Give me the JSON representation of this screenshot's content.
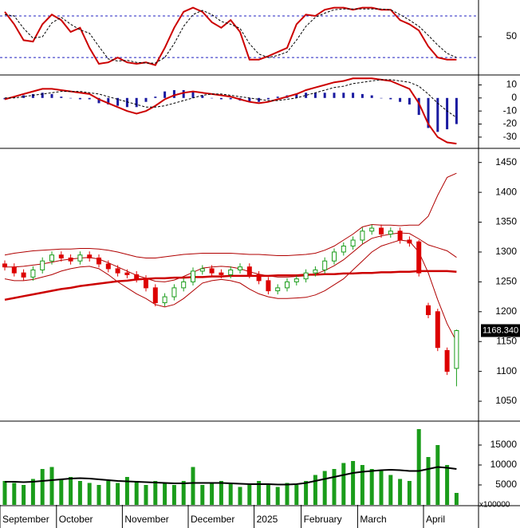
{
  "chart_data": [
    {
      "type": "line",
      "ylim": [
        -4,
        103
      ],
      "yticks": [
        50
      ],
      "levels": [
        20,
        80
      ],
      "series": [
        {
          "color": "#cc0000",
          "values": [
            86,
            68,
            45,
            43,
            68,
            82,
            74,
            57,
            63,
            34,
            11,
            13,
            20,
            13,
            11,
            13,
            9,
            34,
            63,
            86,
            92,
            86,
            71,
            63,
            74,
            57,
            17,
            17,
            22,
            28,
            34,
            68,
            82,
            80,
            89,
            92,
            92,
            89,
            92,
            92,
            89,
            89,
            74,
            68,
            59,
            36,
            20,
            17,
            17
          ]
        },
        {
          "color": "#000000",
          "dashed": true,
          "values": [
            82,
            80,
            62,
            48,
            50,
            70,
            78,
            68,
            60,
            55,
            36,
            18,
            15,
            16,
            13,
            12,
            12,
            20,
            40,
            65,
            82,
            88,
            82,
            72,
            68,
            62,
            40,
            25,
            20,
            23,
            28,
            45,
            65,
            78,
            84,
            89,
            90,
            90,
            90,
            90,
            90,
            89,
            82,
            74,
            65,
            52,
            38,
            26,
            20
          ]
        }
      ]
    },
    {
      "type": "macd",
      "ylim": [
        -38,
        17
      ],
      "yticks": [
        10,
        0,
        -10,
        -20,
        -30
      ],
      "macd": {
        "color": "#cc0000",
        "values": [
          -1,
          1,
          3,
          5,
          7,
          7,
          6,
          5,
          4,
          3,
          -1,
          -4,
          -7,
          -10,
          -12,
          -10,
          -6,
          -1,
          2,
          4,
          5,
          4,
          3,
          2,
          1,
          -1,
          -3,
          -4,
          -3,
          -1,
          1,
          3,
          6,
          8,
          10,
          12,
          13,
          15,
          15,
          15,
          14,
          13,
          10,
          7,
          -4,
          -20,
          -30,
          -34,
          -35
        ]
      },
      "signal": {
        "color": "#000000",
        "values": [
          0,
          0,
          1,
          2,
          3,
          4,
          5,
          5,
          5,
          4,
          3,
          1,
          -1,
          -3,
          -5,
          -7,
          -7,
          -6,
          -4,
          -2,
          0,
          2,
          3,
          3,
          2,
          1,
          0,
          -1,
          -2,
          -2,
          -1,
          0,
          2,
          4,
          6,
          8,
          9,
          11,
          12,
          13,
          14,
          14,
          13,
          12,
          9,
          3,
          -4,
          -10,
          -15
        ]
      },
      "histogram": {
        "color": "#1a1aa0",
        "values": [
          -1,
          1,
          2,
          3,
          4,
          3,
          1,
          0,
          -1,
          -1,
          -4,
          -5,
          -6,
          -7,
          -7,
          -3,
          1,
          5,
          6,
          6,
          5,
          2,
          0,
          -1,
          -1,
          -2,
          -3,
          -3,
          -1,
          1,
          2,
          3,
          4,
          4,
          4,
          4,
          4,
          4,
          3,
          2,
          0,
          -1,
          -3,
          -5,
          -13,
          -23,
          -26,
          -24,
          -20
        ]
      }
    },
    {
      "type": "candlestick",
      "ylim": [
        1018,
        1471
      ],
      "yticks": [
        1450,
        1400,
        1350,
        1300,
        1250,
        1200,
        1150,
        1100,
        1050
      ],
      "up_color": "#1a9c1a",
      "down_color": "#dd0000",
      "open": [
        1280,
        1275,
        1265,
        1258,
        1270,
        1285,
        1295,
        1290,
        1285,
        1295,
        1290,
        1280,
        1272,
        1265,
        1262,
        1255,
        1240,
        1215,
        1225,
        1240,
        1250,
        1268,
        1272,
        1265,
        1262,
        1270,
        1275,
        1262,
        1252,
        1235,
        1240,
        1250,
        1255,
        1265,
        1270,
        1285,
        1300,
        1310,
        1320,
        1335,
        1340,
        1330,
        1335,
        1320,
        1317,
        1210,
        1200,
        1135,
        1105
      ],
      "high": [
        1286,
        1281,
        1271,
        1276,
        1291,
        1301,
        1301,
        1296,
        1301,
        1301,
        1296,
        1286,
        1278,
        1271,
        1268,
        1261,
        1246,
        1231,
        1246,
        1256,
        1274,
        1278,
        1278,
        1271,
        1276,
        1281,
        1281,
        1268,
        1258,
        1246,
        1256,
        1261,
        1271,
        1276,
        1291,
        1306,
        1316,
        1326,
        1341,
        1346,
        1346,
        1341,
        1341,
        1326,
        1320,
        1215,
        1205,
        1140,
        1170
      ],
      "low": [
        1269,
        1259,
        1252,
        1252,
        1264,
        1279,
        1284,
        1279,
        1279,
        1284,
        1274,
        1266,
        1259,
        1256,
        1249,
        1234,
        1209,
        1209,
        1219,
        1234,
        1244,
        1262,
        1259,
        1256,
        1256,
        1264,
        1256,
        1246,
        1229,
        1229,
        1234,
        1244,
        1249,
        1259,
        1264,
        1279,
        1294,
        1304,
        1314,
        1329,
        1324,
        1324,
        1314,
        1309,
        1259,
        1189,
        1134,
        1094,
        1075
      ],
      "close": [
        1275,
        1265,
        1258,
        1270,
        1285,
        1295,
        1290,
        1285,
        1295,
        1290,
        1280,
        1272,
        1265,
        1262,
        1255,
        1240,
        1215,
        1225,
        1240,
        1250,
        1268,
        1272,
        1265,
        1262,
        1270,
        1275,
        1262,
        1252,
        1235,
        1240,
        1250,
        1255,
        1265,
        1270,
        1285,
        1300,
        1310,
        1320,
        1335,
        1340,
        1330,
        1335,
        1320,
        1315,
        1265,
        1195,
        1140,
        1100,
        1168.34
      ],
      "ma": {
        "color": "#cc0000",
        "values": [
          1220,
          1223,
          1226,
          1229,
          1232,
          1235,
          1238,
          1240,
          1243,
          1245,
          1247,
          1249,
          1251,
          1252,
          1254,
          1255,
          1256,
          1256,
          1257,
          1257,
          1258,
          1258,
          1259,
          1259,
          1260,
          1260,
          1260,
          1260,
          1260,
          1261,
          1261,
          1261,
          1262,
          1262,
          1263,
          1263,
          1264,
          1264,
          1265,
          1265,
          1266,
          1266,
          1267,
          1267,
          1268,
          1268,
          1268,
          1268,
          1267
        ]
      },
      "bands": {
        "color": "#b00000",
        "upper": [
          1295,
          1298,
          1300,
          1302,
          1303,
          1304,
          1305,
          1305,
          1306,
          1306,
          1305,
          1303,
          1300,
          1296,
          1292,
          1290,
          1290,
          1292,
          1294,
          1296,
          1297,
          1298,
          1298,
          1298,
          1298,
          1297,
          1296,
          1296,
          1295,
          1294,
          1294,
          1295,
          1296,
          1298,
          1303,
          1310,
          1320,
          1330,
          1342,
          1346,
          1345,
          1345,
          1344,
          1345,
          1345,
          1360,
          1395,
          1425,
          1432
        ],
        "middle": [
          1275,
          1275,
          1276,
          1278,
          1280,
          1283,
          1286,
          1288,
          1290,
          1291,
          1288,
          1282,
          1275,
          1268,
          1261,
          1256,
          1251,
          1250,
          1253,
          1259,
          1266,
          1273,
          1275,
          1276,
          1275,
          1272,
          1267,
          1263,
          1260,
          1258,
          1258,
          1259,
          1260,
          1263,
          1269,
          1277,
          1287,
          1300,
          1313,
          1323,
          1327,
          1330,
          1332,
          1331,
          1322,
          1312,
          1307,
          1302,
          1291
        ],
        "lower": [
          1255,
          1252,
          1252,
          1254,
          1258,
          1262,
          1268,
          1272,
          1275,
          1276,
          1272,
          1262,
          1250,
          1240,
          1230,
          1222,
          1212,
          1208,
          1212,
          1222,
          1235,
          1248,
          1252,
          1254,
          1252,
          1248,
          1238,
          1230,
          1225,
          1222,
          1222,
          1223,
          1224,
          1228,
          1235,
          1245,
          1255,
          1270,
          1285,
          1300,
          1310,
          1315,
          1320,
          1318,
          1300,
          1265,
          1220,
          1180,
          1150
        ]
      },
      "last_price": {
        "value": 1168.34,
        "label": "1168.340"
      }
    },
    {
      "type": "volume",
      "ylim": [
        0,
        20400
      ],
      "yticks": [
        15000,
        10000,
        5000
      ],
      "unit_label": "x100000",
      "categories": [
        "September",
        null,
        null,
        null,
        null,
        null,
        "October",
        null,
        null,
        null,
        null,
        null,
        null,
        "November",
        null,
        null,
        null,
        null,
        null,
        null,
        "December",
        null,
        null,
        null,
        null,
        null,
        null,
        "2025",
        null,
        null,
        null,
        null,
        "February",
        null,
        null,
        null,
        null,
        null,
        "March",
        null,
        null,
        null,
        null,
        null,
        null,
        "April",
        null,
        null,
        null
      ],
      "color": "#1a9c1a",
      "values": [
        6000,
        5500,
        5000,
        6500,
        9000,
        9500,
        6500,
        7000,
        6000,
        5500,
        5000,
        6000,
        5500,
        7000,
        6000,
        5000,
        6000,
        5500,
        5000,
        6000,
        9500,
        5000,
        5500,
        6000,
        5500,
        4500,
        5000,
        6000,
        5000,
        4500,
        5500,
        5000,
        6000,
        7500,
        8500,
        9000,
        10500,
        11000,
        10000,
        9000,
        8500,
        7500,
        6500,
        6000,
        19000,
        12000,
        15000,
        10000,
        3000
      ],
      "ma": {
        "color": "#000000",
        "values": [
          5800,
          5800,
          5700,
          5800,
          6000,
          6200,
          6400,
          6600,
          6700,
          6600,
          6400,
          6200,
          6000,
          5900,
          5800,
          5700,
          5600,
          5500,
          5400,
          5400,
          5500,
          5500,
          5500,
          5500,
          5400,
          5300,
          5200,
          5200,
          5200,
          5100,
          5100,
          5200,
          5500,
          6000,
          6500,
          7000,
          7500,
          8000,
          8300,
          8500,
          8700,
          8800,
          8700,
          8500,
          8500,
          9000,
          9500,
          9300,
          9000
        ]
      }
    }
  ]
}
